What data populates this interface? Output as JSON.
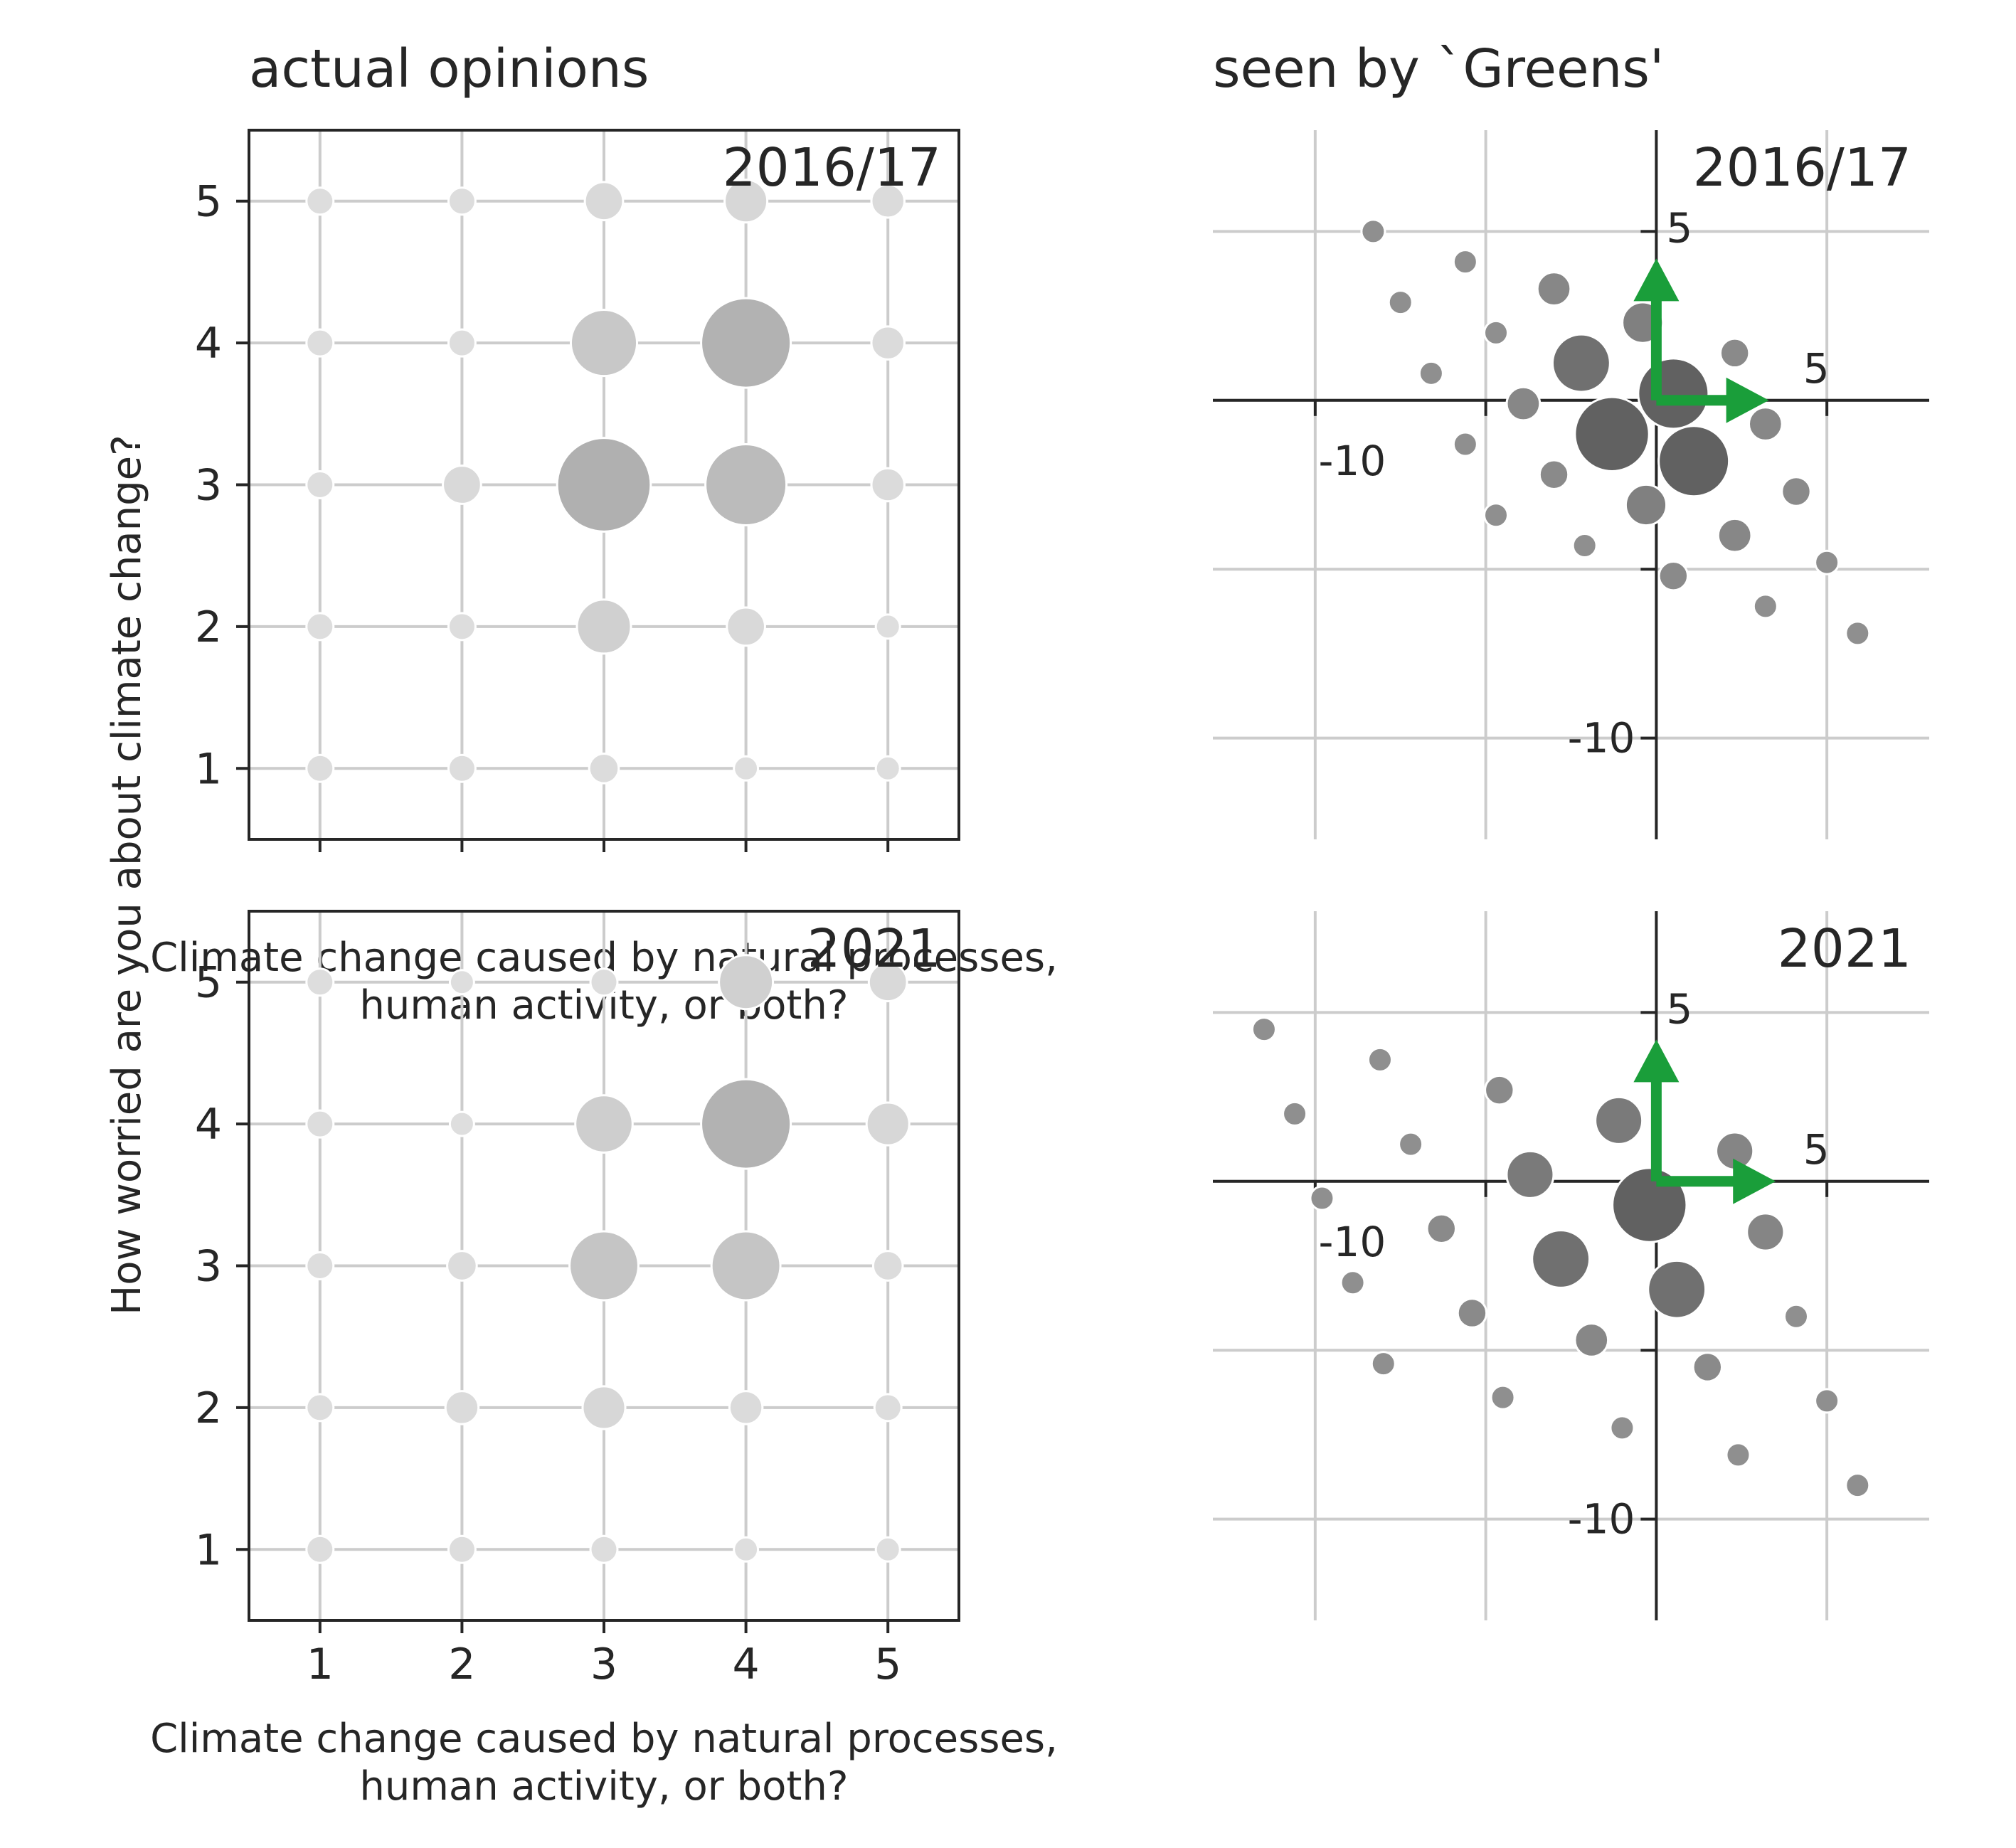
{
  "columns": {
    "left_title": "actual opinions",
    "right_title": "seen by `Greens'"
  },
  "colors": {
    "grid": "#cccccc",
    "frame": "#262626",
    "arrow": "#1a9e3a",
    "marker_edge": "#ffffff"
  },
  "chart_data": [
    {
      "type": "scatter",
      "panel": "actual-2016",
      "label": "2016/17",
      "xlabel": "Climate change caused by natural processes, human activity, or both?",
      "ylabel": "How worried are you about climate change?",
      "xlim": [
        0.5,
        5.5
      ],
      "ylim": [
        0.5,
        5.5
      ],
      "xticks": [
        1,
        2,
        3,
        4,
        5
      ],
      "yticks": [
        1,
        2,
        3,
        4,
        5
      ],
      "grid": true,
      "points": [
        {
          "x": 1,
          "y": 5,
          "s": 1
        },
        {
          "x": 2,
          "y": 5,
          "s": 1
        },
        {
          "x": 3,
          "y": 5,
          "s": 2
        },
        {
          "x": 4,
          "y": 5,
          "s": 2.5
        },
        {
          "x": 5,
          "y": 5,
          "s": 1.5
        },
        {
          "x": 1,
          "y": 4,
          "s": 1
        },
        {
          "x": 2,
          "y": 4,
          "s": 1
        },
        {
          "x": 3,
          "y": 4,
          "s": 6
        },
        {
          "x": 4,
          "y": 4,
          "s": 11
        },
        {
          "x": 5,
          "y": 4,
          "s": 1.5
        },
        {
          "x": 1,
          "y": 3,
          "s": 1
        },
        {
          "x": 2,
          "y": 3,
          "s": 2
        },
        {
          "x": 3,
          "y": 3,
          "s": 12
        },
        {
          "x": 4,
          "y": 3,
          "s": 9
        },
        {
          "x": 5,
          "y": 3,
          "s": 1.5
        },
        {
          "x": 1,
          "y": 2,
          "s": 1
        },
        {
          "x": 2,
          "y": 2,
          "s": 1
        },
        {
          "x": 3,
          "y": 2,
          "s": 4
        },
        {
          "x": 4,
          "y": 2,
          "s": 2
        },
        {
          "x": 5,
          "y": 2,
          "s": 0.8
        },
        {
          "x": 1,
          "y": 1,
          "s": 1
        },
        {
          "x": 2,
          "y": 1,
          "s": 1
        },
        {
          "x": 3,
          "y": 1,
          "s": 1.2
        },
        {
          "x": 4,
          "y": 1,
          "s": 0.8
        },
        {
          "x": 5,
          "y": 1,
          "s": 0.8
        }
      ]
    },
    {
      "type": "scatter",
      "panel": "actual-2021",
      "label": "2021",
      "xlabel": "Climate change caused by natural processes, human activity, or both?",
      "xlim": [
        0.5,
        5.5
      ],
      "ylim": [
        0.5,
        5.5
      ],
      "xticks": [
        1,
        2,
        3,
        4,
        5
      ],
      "yticks": [
        1,
        2,
        3,
        4,
        5
      ],
      "grid": true,
      "points": [
        {
          "x": 1,
          "y": 5,
          "s": 1
        },
        {
          "x": 2,
          "y": 5,
          "s": 0.8
        },
        {
          "x": 3,
          "y": 5,
          "s": 1
        },
        {
          "x": 4,
          "y": 5,
          "s": 4
        },
        {
          "x": 5,
          "y": 5,
          "s": 2
        },
        {
          "x": 1,
          "y": 4,
          "s": 1
        },
        {
          "x": 2,
          "y": 4,
          "s": 0.8
        },
        {
          "x": 3,
          "y": 4,
          "s": 4.5
        },
        {
          "x": 4,
          "y": 4,
          "s": 11
        },
        {
          "x": 5,
          "y": 4,
          "s": 2.5
        },
        {
          "x": 1,
          "y": 3,
          "s": 1
        },
        {
          "x": 2,
          "y": 3,
          "s": 1.2
        },
        {
          "x": 3,
          "y": 3,
          "s": 6.5
        },
        {
          "x": 4,
          "y": 3,
          "s": 6.5
        },
        {
          "x": 5,
          "y": 3,
          "s": 1.2
        },
        {
          "x": 1,
          "y": 2,
          "s": 1
        },
        {
          "x": 2,
          "y": 2,
          "s": 1.5
        },
        {
          "x": 3,
          "y": 2,
          "s": 2.5
        },
        {
          "x": 4,
          "y": 2,
          "s": 1.5
        },
        {
          "x": 5,
          "y": 2,
          "s": 1
        },
        {
          "x": 1,
          "y": 1,
          "s": 1
        },
        {
          "x": 2,
          "y": 1,
          "s": 1
        },
        {
          "x": 3,
          "y": 1,
          "s": 1
        },
        {
          "x": 4,
          "y": 1,
          "s": 0.8
        },
        {
          "x": 5,
          "y": 1,
          "s": 0.8
        }
      ]
    },
    {
      "type": "scatter",
      "panel": "greens-2016",
      "label": "2016/17",
      "xlim": [
        -13,
        8
      ],
      "ylim": [
        -13,
        8
      ],
      "xticks": [
        -10,
        -5,
        0,
        5
      ],
      "yticks": [
        -10,
        -5,
        0,
        5
      ],
      "tick_labels_x": [
        "-10",
        "5"
      ],
      "tick_labels_y": [
        "-10",
        "5"
      ],
      "grid": true,
      "arrows": [
        {
          "dx": 3.3,
          "dy": 0
        },
        {
          "dx": 0,
          "dy": 4.2
        }
      ],
      "points": [
        {
          "x": -8.3,
          "y": 5.0,
          "s": 1,
          "g": 0.56
        },
        {
          "x": -5.6,
          "y": 4.1,
          "s": 1,
          "g": 0.56
        },
        {
          "x": -7.5,
          "y": 2.9,
          "s": 1,
          "g": 0.56
        },
        {
          "x": -3.0,
          "y": 3.3,
          "s": 2,
          "g": 0.53
        },
        {
          "x": -4.7,
          "y": 2.0,
          "s": 1,
          "g": 0.56
        },
        {
          "x": -0.4,
          "y": 2.3,
          "s": 3,
          "g": 0.5
        },
        {
          "x": -6.6,
          "y": 0.8,
          "s": 1,
          "g": 0.56
        },
        {
          "x": -2.2,
          "y": 1.1,
          "s": 6,
          "g": 0.44
        },
        {
          "x": -3.9,
          "y": -0.1,
          "s": 2,
          "g": 0.53
        },
        {
          "x": 0.5,
          "y": 0.2,
          "s": 9,
          "g": 0.38
        },
        {
          "x": 2.3,
          "y": 1.4,
          "s": 1.5,
          "g": 0.54
        },
        {
          "x": 3.2,
          "y": -0.7,
          "s": 2,
          "g": 0.53
        },
        {
          "x": -1.3,
          "y": -1.0,
          "s": 10,
          "g": 0.38
        },
        {
          "x": 1.1,
          "y": -1.8,
          "s": 9,
          "g": 0.38
        },
        {
          "x": -5.6,
          "y": -1.3,
          "s": 1,
          "g": 0.56
        },
        {
          "x": -3.0,
          "y": -2.2,
          "s": 1.5,
          "g": 0.54
        },
        {
          "x": 4.1,
          "y": -2.7,
          "s": 1.5,
          "g": 0.54
        },
        {
          "x": -0.3,
          "y": -3.1,
          "s": 3,
          "g": 0.5
        },
        {
          "x": -4.7,
          "y": -3.4,
          "s": 1,
          "g": 0.56
        },
        {
          "x": 2.3,
          "y": -4.0,
          "s": 2,
          "g": 0.53
        },
        {
          "x": -2.1,
          "y": -4.3,
          "s": 1,
          "g": 0.56
        },
        {
          "x": 5.0,
          "y": -4.8,
          "s": 1,
          "g": 0.56
        },
        {
          "x": 0.5,
          "y": -5.2,
          "s": 1.5,
          "g": 0.54
        },
        {
          "x": 3.2,
          "y": -6.1,
          "s": 1,
          "g": 0.56
        },
        {
          "x": 5.9,
          "y": -6.9,
          "s": 1,
          "g": 0.56
        }
      ]
    },
    {
      "type": "scatter",
      "panel": "greens-2021",
      "label": "2021",
      "xlim": [
        -13,
        8
      ],
      "ylim": [
        -13,
        8
      ],
      "xticks": [
        -10,
        -5,
        0,
        5
      ],
      "yticks": [
        -10,
        -5,
        0,
        5
      ],
      "tick_labels_x": [
        "-10",
        "5"
      ],
      "tick_labels_y": [
        "-10",
        "5"
      ],
      "grid": true,
      "arrows": [
        {
          "dx": 3.5,
          "dy": 0
        },
        {
          "dx": 0,
          "dy": 4.2
        }
      ],
      "points": [
        {
          "x": -11.5,
          "y": 4.5,
          "s": 1,
          "g": 0.56
        },
        {
          "x": -8.1,
          "y": 3.6,
          "s": 1,
          "g": 0.56
        },
        {
          "x": -10.6,
          "y": 2.0,
          "s": 1,
          "g": 0.56
        },
        {
          "x": -4.6,
          "y": 2.7,
          "s": 1.5,
          "g": 0.54
        },
        {
          "x": -1.1,
          "y": 1.8,
          "s": 4,
          "g": 0.48
        },
        {
          "x": -7.2,
          "y": 1.1,
          "s": 1,
          "g": 0.56
        },
        {
          "x": 2.3,
          "y": 0.9,
          "s": 2.5,
          "g": 0.52
        },
        {
          "x": -3.7,
          "y": 0.2,
          "s": 4,
          "g": 0.48
        },
        {
          "x": -9.8,
          "y": -0.5,
          "s": 1,
          "g": 0.56
        },
        {
          "x": -0.2,
          "y": -0.7,
          "s": 10,
          "g": 0.38
        },
        {
          "x": -6.3,
          "y": -1.4,
          "s": 1.5,
          "g": 0.54
        },
        {
          "x": 3.2,
          "y": -1.5,
          "s": 2.5,
          "g": 0.52
        },
        {
          "x": -2.8,
          "y": -2.3,
          "s": 6,
          "g": 0.44
        },
        {
          "x": -8.9,
          "y": -3.0,
          "s": 1,
          "g": 0.56
        },
        {
          "x": 0.6,
          "y": -3.2,
          "s": 6,
          "g": 0.44
        },
        {
          "x": -5.4,
          "y": -3.9,
          "s": 1.5,
          "g": 0.54
        },
        {
          "x": 4.1,
          "y": -4.0,
          "s": 1,
          "g": 0.56
        },
        {
          "x": -1.9,
          "y": -4.7,
          "s": 2,
          "g": 0.53
        },
        {
          "x": -8.0,
          "y": -5.4,
          "s": 1,
          "g": 0.56
        },
        {
          "x": 1.5,
          "y": -5.5,
          "s": 1.5,
          "g": 0.54
        },
        {
          "x": -4.5,
          "y": -6.4,
          "s": 1,
          "g": 0.56
        },
        {
          "x": 5.0,
          "y": -6.5,
          "s": 1,
          "g": 0.56
        },
        {
          "x": -1.0,
          "y": -7.3,
          "s": 1,
          "g": 0.56
        },
        {
          "x": 2.4,
          "y": -8.1,
          "s": 1,
          "g": 0.56
        },
        {
          "x": 5.9,
          "y": -9.0,
          "s": 1,
          "g": 0.56
        }
      ]
    }
  ]
}
